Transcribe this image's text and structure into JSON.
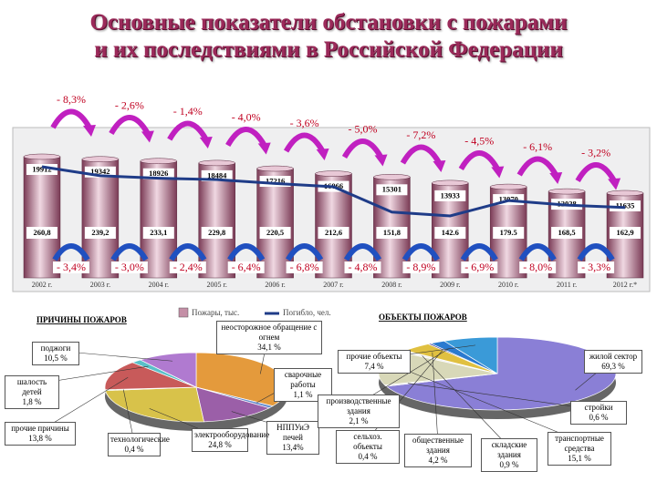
{
  "chart_data": [
    {
      "type": "bar",
      "title": "Основные показатели обстановки с пожарами и их последствиями в Российской Федерации",
      "categories": [
        "2002 г.",
        "2003 г.",
        "2004 г.",
        "2005 г.",
        "2006 г.",
        "2007 г.",
        "2008 г.",
        "2009 г.",
        "2010 г.",
        "2011 г.",
        "2012 г.*"
      ],
      "series": [
        {
          "name": "Пожары, тыс.",
          "color": "#c48fa6",
          "values": [
            19912,
            19342,
            18926,
            18484,
            17216,
            16066,
            15301,
            13933,
            13070,
            12028,
            11635
          ]
        },
        {
          "name": "Погибло, чел.",
          "type": "line",
          "color": "#1f3c88",
          "values": [
            260.8,
            239.2,
            233.1,
            229.8,
            220.5,
            212.6,
            151.8,
            142.6,
            179.5,
            168.5,
            162.9
          ],
          "value_labels": [
            "260,8",
            "239,2",
            "233,1",
            "229,8",
            "220,5",
            "212,6",
            "151,8",
            "142.6",
            "179.5",
            "168,5",
            "162,9"
          ]
        }
      ],
      "annotations_top": [
        "- 8,3%",
        "- 2,6%",
        "- 1,4%",
        "- 4,0%",
        "- 3,6%",
        "- 5,0%",
        "- 7,2%",
        "- 4,5%",
        "- 6,1%",
        "- 3,2%"
      ],
      "annotations_bottom": [
        "- 3,4%",
        "- 3,0%",
        "- 2,4%",
        "- 6,4%",
        "- 6,8%",
        "- 4,8%",
        "- 8,9%",
        "- 6,9%",
        "- 8,0%",
        "- 3,3%"
      ]
    },
    {
      "type": "pie",
      "title": "ПРИЧИНЫ ПОЖАРОВ",
      "categories": [
        "неосторожное обращение с огнем",
        "сварочные работы",
        "НППУиЭ печей",
        "электрооборудование",
        "технологические",
        "прочие причины",
        "шалость детей",
        "поджоги"
      ],
      "values": [
        34.1,
        1.1,
        13.4,
        24.8,
        0.4,
        13.8,
        1.8,
        10.5
      ],
      "value_labels": [
        "34,1 %",
        "1,1 %",
        "13,4%",
        "24,8 %",
        "0,4 %",
        "13,8 %",
        "1,8 %",
        "10,5 %"
      ],
      "colors": [
        "#e49a3c",
        "#6a8fd0",
        "#9b5fa8",
        "#d8c24a",
        "#4fae6e",
        "#c85a5a",
        "#5ac0c8",
        "#b07ad0"
      ]
    },
    {
      "type": "pie",
      "title": "ОБЪЕКТЫ ПОЖАРОВ",
      "categories": [
        "жилой сектор",
        "стройки",
        "транспортные средства",
        "складские здания",
        "общественные здания",
        "сельхоз. объекты",
        "производственные здания",
        "прочие объекты"
      ],
      "values": [
        69.3,
        0.6,
        15.1,
        0.9,
        4.2,
        0.4,
        2.1,
        7.4
      ],
      "value_labels": [
        "69,3 %",
        "0,6 %",
        "15,1 %",
        "0,9 %",
        "4,2 %",
        "0,4 %",
        "2,1 %",
        "7,4 %"
      ],
      "colors": [
        "#8a7fd6",
        "#e6e6e6",
        "#d8d8b8",
        "#f0f0f0",
        "#e0c040",
        "#3a3aa0",
        "#2a7ad0",
        "#3a9ad8"
      ]
    }
  ]
}
